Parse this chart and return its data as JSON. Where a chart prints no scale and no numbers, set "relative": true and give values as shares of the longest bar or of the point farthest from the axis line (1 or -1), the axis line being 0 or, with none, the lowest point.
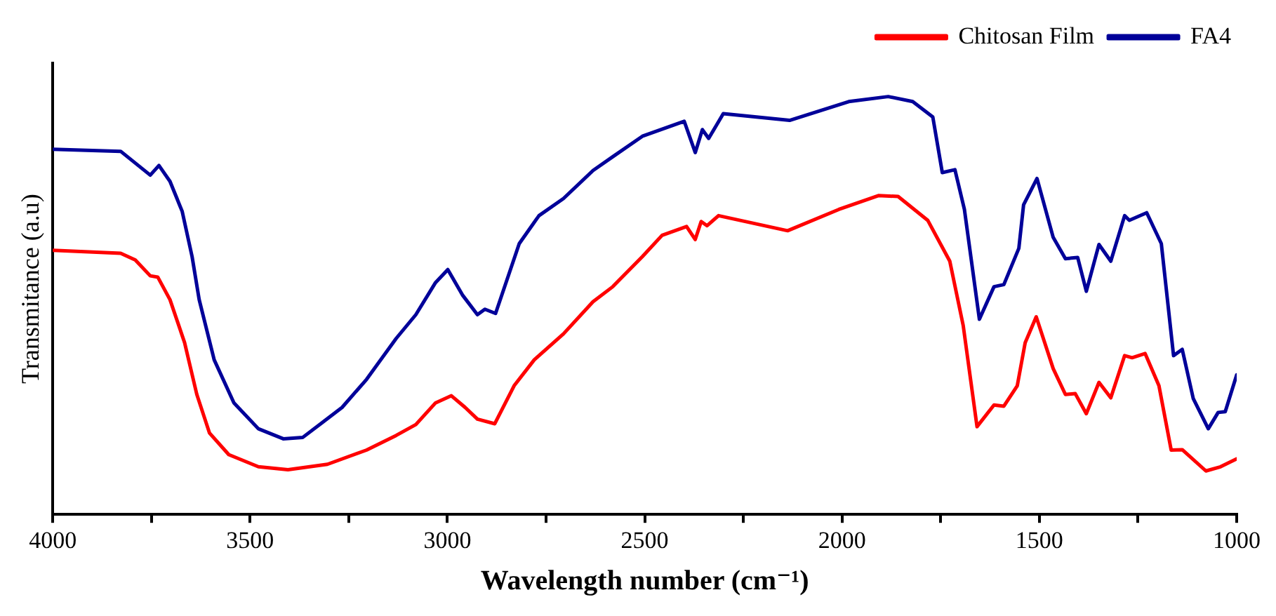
{
  "chart_data": {
    "type": "line",
    "xlabel": "Wavelength number (cm⁻¹)",
    "ylabel": "Transmitance (a.u)",
    "relative": true,
    "legend": "top right",
    "grid": false,
    "marker": "none",
    "line_style": "solid",
    "xlim": [
      4000,
      1000
    ],
    "xticks": [
      4000,
      {
        "value": 3750,
        "label": null
      },
      3500,
      {
        "value": 3250,
        "label": null
      },
      3000,
      {
        "value": 2750,
        "label": null
      },
      2500,
      {
        "value": 2250,
        "label": null
      },
      2000,
      {
        "value": 1750,
        "label": null
      },
      1500,
      {
        "value": 1250,
        "label": null
      },
      1000
    ],
    "series": [
      {
        "name": "Chitosan Film",
        "color": "#ff0000",
        "x": [
          4000,
          3828,
          3791,
          3753,
          3734,
          3703,
          3666,
          3635,
          3603,
          3554,
          3479,
          3404,
          3304,
          3205,
          3130,
          3080,
          3030,
          2990,
          2955,
          2924,
          2880,
          2831,
          2780,
          2706,
          2631,
          2581,
          2506,
          2456,
          2394,
          2372,
          2357,
          2342,
          2313,
          2138,
          2008,
          1908,
          1858,
          1783,
          1727,
          1693,
          1658,
          1615,
          1590,
          1556,
          1536,
          1508,
          1465,
          1434,
          1409,
          1381,
          1349,
          1319,
          1284,
          1265,
          1232,
          1197,
          1166,
          1138,
          1078,
          1041,
          1000
        ],
        "values": [
          0.632,
          0.625,
          0.609,
          0.571,
          0.568,
          0.514,
          0.411,
          0.287,
          0.195,
          0.143,
          0.114,
          0.107,
          0.12,
          0.154,
          0.189,
          0.215,
          0.267,
          0.284,
          0.256,
          0.228,
          0.217,
          0.308,
          0.37,
          0.432,
          0.509,
          0.545,
          0.617,
          0.668,
          0.689,
          0.658,
          0.701,
          0.691,
          0.715,
          0.679,
          0.73,
          0.763,
          0.761,
          0.704,
          0.606,
          0.452,
          0.21,
          0.262,
          0.259,
          0.308,
          0.411,
          0.473,
          0.349,
          0.287,
          0.289,
          0.241,
          0.316,
          0.279,
          0.38,
          0.375,
          0.385,
          0.308,
          0.154,
          0.155,
          0.104,
          0.114,
          0.133
        ]
      },
      {
        "name": "FA4",
        "color": "#000099",
        "x": [
          4000,
          3828,
          3753,
          3731,
          3703,
          3672,
          3647,
          3629,
          3591,
          3541,
          3479,
          3416,
          3367,
          3317,
          3267,
          3205,
          3130,
          3080,
          3030,
          2999,
          2961,
          2924,
          2905,
          2878,
          2818,
          2768,
          2706,
          2631,
          2581,
          2506,
          2400,
          2372,
          2354,
          2338,
          2301,
          2133,
          1983,
          1883,
          1821,
          1770,
          1746,
          1714,
          1690,
          1652,
          1615,
          1590,
          1552,
          1540,
          1506,
          1465,
          1434,
          1403,
          1381,
          1349,
          1319,
          1284,
          1272,
          1228,
          1191,
          1160,
          1138,
          1110,
          1072,
          1047,
          1029,
          1000
        ],
        "values": [
          0.874,
          0.869,
          0.812,
          0.835,
          0.797,
          0.725,
          0.617,
          0.514,
          0.37,
          0.267,
          0.205,
          0.181,
          0.184,
          0.22,
          0.256,
          0.323,
          0.421,
          0.478,
          0.555,
          0.586,
          0.524,
          0.478,
          0.491,
          0.481,
          0.648,
          0.715,
          0.756,
          0.823,
          0.856,
          0.905,
          0.941,
          0.866,
          0.921,
          0.9,
          0.959,
          0.943,
          0.988,
          1,
          0.988,
          0.951,
          0.818,
          0.825,
          0.73,
          0.467,
          0.545,
          0.55,
          0.637,
          0.741,
          0.804,
          0.663,
          0.612,
          0.615,
          0.534,
          0.646,
          0.606,
          0.715,
          0.704,
          0.722,
          0.648,
          0.38,
          0.395,
          0.277,
          0.205,
          0.244,
          0.246,
          0.334
        ]
      }
    ]
  }
}
